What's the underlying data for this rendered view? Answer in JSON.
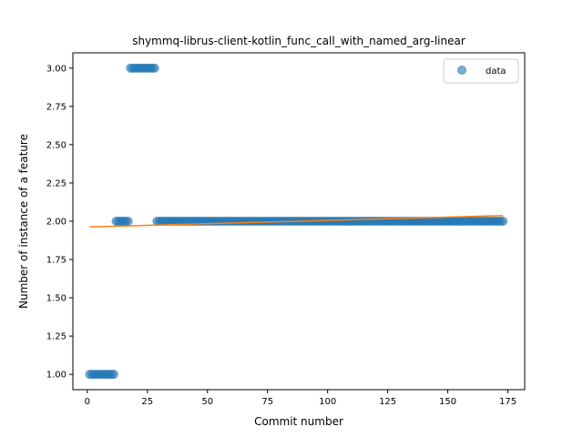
{
  "chart_data": {
    "type": "scatter",
    "title": "shymmq-librus-client-kotlin_func_call_with_named_arg-linear",
    "xlabel": "Commit number",
    "ylabel": "Number of instance of a feature",
    "xlim": [
      -6,
      182
    ],
    "ylim": [
      0.9,
      3.1
    ],
    "xticks": [
      0,
      25,
      50,
      75,
      100,
      125,
      150,
      175
    ],
    "yticks": [
      1.0,
      1.25,
      1.5,
      1.75,
      2.0,
      2.25,
      2.5,
      2.75,
      3.0
    ],
    "grid": false,
    "legend": {
      "placement": "top-right",
      "entries": [
        "data"
      ]
    },
    "colors": {
      "scatter": "#1f77b4",
      "fit": "#ff7f0e"
    },
    "series": [
      {
        "name": "data",
        "kind": "scatter",
        "segments": [
          {
            "x_start": 1,
            "x_end": 11,
            "y": 1
          },
          {
            "x_start": 12,
            "x_end": 17,
            "y": 2
          },
          {
            "x_start": 18,
            "x_end": 28,
            "y": 3
          },
          {
            "x_start": 29,
            "x_end": 173,
            "y": 2
          }
        ]
      },
      {
        "kind": "line",
        "x": [
          1,
          173
        ],
        "y": [
          1.963,
          2.037
        ]
      }
    ]
  }
}
